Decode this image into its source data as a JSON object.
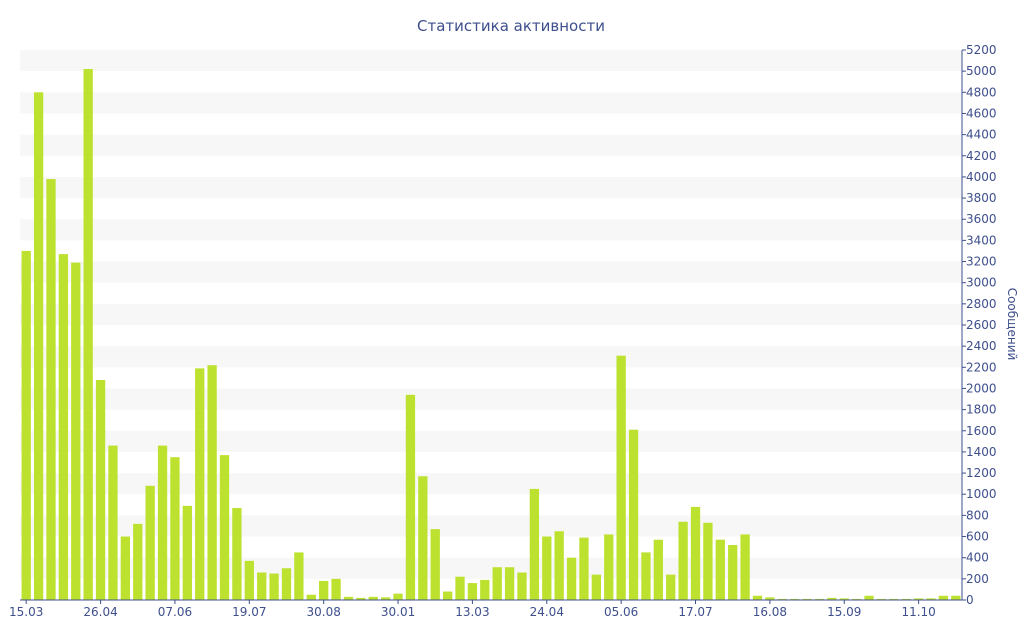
{
  "chart_data": {
    "type": "bar",
    "title": "Статистика активности",
    "xlabel": "",
    "ylabel": "Сообщений",
    "ylim": [
      0,
      5200
    ],
    "y_axis_side": "right",
    "yticks": [
      0,
      200,
      400,
      600,
      800,
      1000,
      1200,
      1400,
      1600,
      1800,
      2000,
      2200,
      2400,
      2600,
      2800,
      3000,
      3200,
      3400,
      3600,
      3800,
      4000,
      4200,
      4400,
      4600,
      4800,
      5000,
      5200
    ],
    "xtick_labels": [
      {
        "label": "15.03",
        "index": 0
      },
      {
        "label": "26.04",
        "index": 6
      },
      {
        "label": "07.06",
        "index": 12
      },
      {
        "label": "19.07",
        "index": 18
      },
      {
        "label": "30.08",
        "index": 24
      },
      {
        "label": "30.01",
        "index": 30
      },
      {
        "label": "13.03",
        "index": 36
      },
      {
        "label": "24.04",
        "index": 42
      },
      {
        "label": "05.06",
        "index": 48
      },
      {
        "label": "17.07",
        "index": 54
      },
      {
        "label": "16.08",
        "index": 60
      },
      {
        "label": "15.09",
        "index": 66
      },
      {
        "label": "11.10",
        "index": 72
      }
    ],
    "values": [
      3300,
      4800,
      3980,
      3270,
      3190,
      5020,
      2080,
      1460,
      600,
      720,
      1080,
      1460,
      1350,
      890,
      2190,
      2220,
      1370,
      870,
      370,
      260,
      250,
      300,
      450,
      50,
      180,
      200,
      30,
      20,
      30,
      25,
      60,
      1940,
      1170,
      670,
      80,
      220,
      160,
      190,
      310,
      310,
      260,
      1050,
      600,
      650,
      400,
      590,
      240,
      620,
      2310,
      1610,
      450,
      570,
      240,
      740,
      880,
      730,
      570,
      520,
      620,
      40,
      25,
      10,
      10,
      10,
      10,
      20,
      15,
      10,
      40,
      10,
      10,
      10,
      15,
      15,
      40,
      40
    ],
    "grid": "horizontal-bands",
    "legend": "none",
    "colors": {
      "bar": "#bde12f",
      "band": "#f7f7f7",
      "text": "#3e4f8c",
      "axis": "#3e4f8c"
    }
  }
}
